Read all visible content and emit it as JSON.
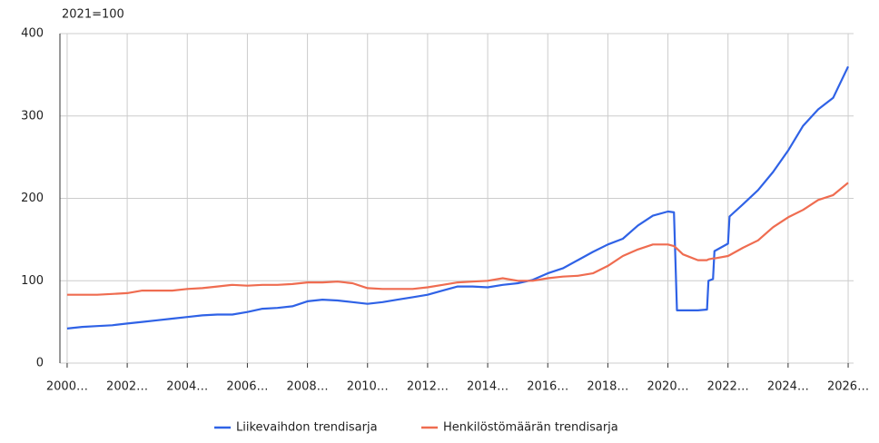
{
  "chart_data": {
    "type": "line",
    "y_axis_label": "2021=100",
    "x": [
      2000,
      2000.5,
      2001,
      2001.5,
      2002,
      2002.5,
      2003,
      2003.5,
      2004,
      2004.5,
      2005,
      2005.5,
      2006,
      2006.5,
      2007,
      2007.5,
      2008,
      2008.5,
      2009,
      2009.5,
      2010,
      2010.5,
      2011,
      2011.5,
      2012,
      2012.5,
      2013,
      2013.5,
      2014,
      2014.5,
      2015,
      2015.5,
      2016,
      2016.5,
      2017,
      2017.5,
      2018,
      2018.5,
      2019,
      2019.5,
      2020,
      2020.2,
      2020.3,
      2020.5,
      2021,
      2021.3,
      2021.35,
      2021.5,
      2021.55,
      2022,
      2022.05,
      2022.5,
      2023,
      2023.5,
      2024,
      2024.5,
      2025,
      2025.5,
      2026
    ],
    "series": [
      {
        "name": "Liikevaihdon trendisarja",
        "color": "#2f62e6",
        "values": [
          42,
          44,
          45,
          46,
          48,
          50,
          52,
          54,
          56,
          58,
          59,
          59,
          62,
          66,
          67,
          69,
          75,
          77,
          76,
          74,
          72,
          74,
          77,
          80,
          83,
          88,
          93,
          93,
          92,
          95,
          97,
          101,
          109,
          115,
          125,
          135,
          144,
          151,
          167,
          179,
          184,
          183,
          64,
          64,
          64,
          65,
          100,
          102,
          136,
          145,
          178,
          193,
          210,
          232,
          258,
          288,
          308,
          322,
          360
        ]
      },
      {
        "name": "Henkilöstömäärän trendisarja",
        "color": "#ef6c50",
        "values": [
          83,
          83,
          83,
          84,
          85,
          88,
          88,
          88,
          90,
          91,
          93,
          95,
          94,
          95,
          95,
          96,
          98,
          98,
          99,
          97,
          91,
          90,
          90,
          90,
          92,
          95,
          98,
          99,
          100,
          103,
          100,
          100,
          103,
          105,
          106,
          109,
          118,
          130,
          138,
          144,
          144,
          142,
          139,
          132,
          125,
          125,
          126,
          127,
          127,
          130,
          131,
          140,
          149,
          165,
          177,
          186,
          198,
          204,
          219
        ]
      }
    ],
    "xlim": [
      1999.76,
      2026.18
    ],
    "xticks": [
      {
        "value": 2000,
        "label": "2000…"
      },
      {
        "value": 2002,
        "label": "2002…"
      },
      {
        "value": 2004,
        "label": "2004…"
      },
      {
        "value": 2006,
        "label": "2006…"
      },
      {
        "value": 2008,
        "label": "2008…"
      },
      {
        "value": 2010,
        "label": "2010…"
      },
      {
        "value": 2012,
        "label": "2012…"
      },
      {
        "value": 2014,
        "label": "2014…"
      },
      {
        "value": 2016,
        "label": "2016…"
      },
      {
        "value": 2018,
        "label": "2018…"
      },
      {
        "value": 2020,
        "label": "2020…"
      },
      {
        "value": 2022,
        "label": "2022…"
      },
      {
        "value": 2024,
        "label": "2024…"
      },
      {
        "value": 2026,
        "label": "2026…"
      }
    ],
    "ylim": [
      0,
      400
    ],
    "yticks": [
      0,
      100,
      200,
      300,
      400
    ],
    "grid": true,
    "legend": "bottom"
  }
}
